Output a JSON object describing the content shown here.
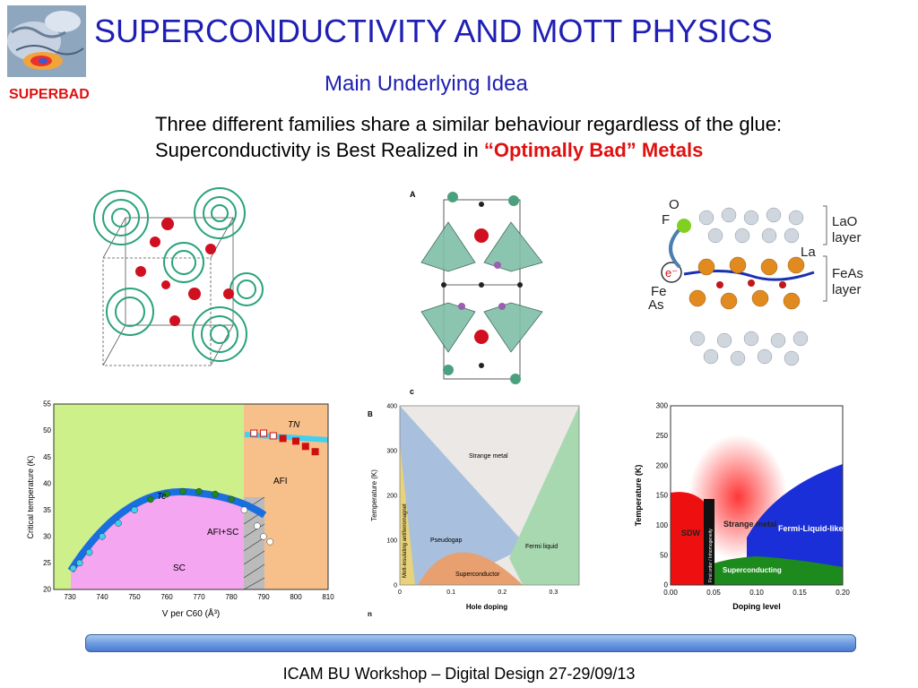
{
  "header": {
    "title": "SUPERCONDUCTIVITY AND MOTT PHYSICS",
    "subtitle": "Main Underlying Idea",
    "logo_label": "SUPERBAD"
  },
  "body": {
    "line1": "Three different families share a similar behaviour regardless of the glue:",
    "line2_prefix": "Superconductivity is Best Realized in ",
    "line2_highlight": "“Optimally Bad” Metals"
  },
  "figures": {
    "cuprate_panel_a": "A",
    "cuprate_panel_c": "c",
    "pnictide_labels": {
      "o": "O",
      "f": "F",
      "la": "La",
      "fe": "Fe",
      "as": "As",
      "e": "e⁻",
      "lao1": "LaO",
      "lao2": "layer",
      "feas1": "FeAs",
      "feas2": "layer"
    }
  },
  "chart_data": [
    {
      "type": "line",
      "xlabel": "V per C60 (Å³)",
      "ylabel": "Critical temperature (K)",
      "xlim": [
        725,
        810
      ],
      "ylim": [
        20,
        55
      ],
      "xticks": [
        "730",
        "740",
        "750",
        "760",
        "770",
        "780",
        "790",
        "800",
        "810"
      ],
      "yticks": [
        "20",
        "25",
        "30",
        "35",
        "40",
        "45",
        "50",
        "55"
      ],
      "regions": [
        "SC",
        "AFI",
        "AFI+SC"
      ],
      "annotations": [
        "Tc",
        "TN"
      ],
      "series": [
        {
          "name": "Tc",
          "x": [
            731,
            733,
            736,
            740,
            745,
            750,
            755,
            760,
            765,
            770,
            775,
            780,
            784,
            788,
            790,
            792
          ],
          "y": [
            24,
            25,
            27,
            30,
            32.5,
            35,
            37,
            38,
            38.5,
            38.5,
            38,
            37,
            35,
            32,
            30,
            29
          ]
        },
        {
          "name": "TN",
          "x": [
            787,
            790,
            793,
            796,
            800,
            803,
            806
          ],
          "y": [
            49.5,
            49.5,
            49,
            48.5,
            48,
            47,
            46
          ]
        }
      ]
    },
    {
      "type": "area",
      "panel_label": "B",
      "panel_label_bottom": "n",
      "xlabel": "Hole doping",
      "ylabel": "Temperature (K)",
      "xlim": [
        0,
        0.35
      ],
      "ylim": [
        0,
        400
      ],
      "xticks": [
        "0",
        "0.1",
        "0.2",
        "0.3"
      ],
      "yticks": [
        "0",
        "100",
        "200",
        "300",
        "400"
      ],
      "regions": [
        "Mott-insulating antiferromagnet",
        "Pseudogap",
        "Strange metal",
        "Fermi liquid",
        "Superconductor"
      ]
    },
    {
      "type": "area",
      "xlabel": "Doping level",
      "ylabel": "Temperature (K)",
      "xlim": [
        0,
        0.2
      ],
      "ylim": [
        0,
        300
      ],
      "xticks": [
        "0.00",
        "0.05",
        "0.10",
        "0.15",
        "0.20"
      ],
      "yticks": [
        "0",
        "50",
        "100",
        "150",
        "200",
        "250",
        "300"
      ],
      "regions": [
        "SDW",
        "First order / Inhomogeneity",
        "Strange metal",
        "Fermi-Liquid-like",
        "Superconducting"
      ]
    }
  ],
  "footer": {
    "text": "ICAM BU Workshop – Digital Design 27-29/09/13"
  },
  "colors": {
    "title": "#1f1fb4",
    "highlight": "#e01010",
    "c60_cage": "#2aa37a",
    "sc_region": "#f4a6f0",
    "afi_region": "#f7c08a",
    "c60_bg": "#cdf08a"
  }
}
